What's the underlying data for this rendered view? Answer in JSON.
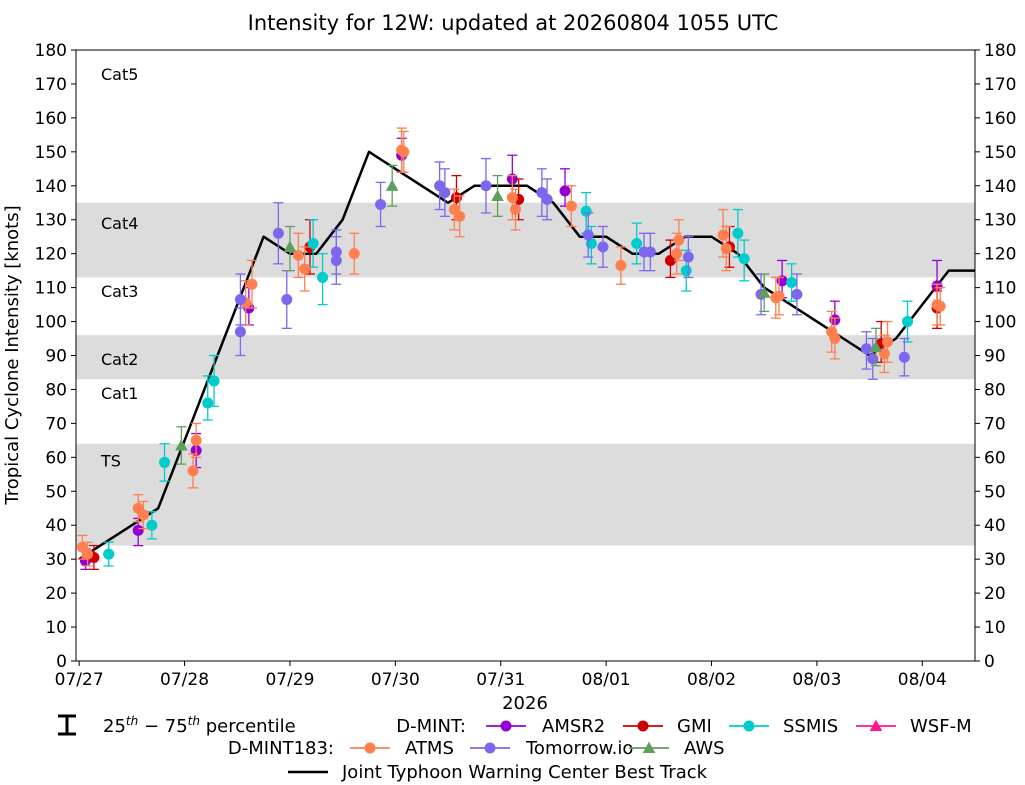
{
  "chart_data": {
    "type": "scatter",
    "title": "Intensity for 12W: updated at 20260804 1055 UTC",
    "ylabel": "Tropical Cyclone Intensity [knots]",
    "xlabel": "2026",
    "ylim": [
      0,
      180
    ],
    "yticks": [
      0,
      10,
      20,
      30,
      40,
      50,
      60,
      70,
      80,
      90,
      100,
      110,
      120,
      130,
      140,
      150,
      160,
      170,
      180
    ],
    "xlim": [
      -0.03,
      8.5
    ],
    "x_units": "days since 07/27 0000 UTC",
    "xticks": [
      {
        "x": 0,
        "label": "07/27"
      },
      {
        "x": 1,
        "label": "07/28"
      },
      {
        "x": 2,
        "label": "07/29"
      },
      {
        "x": 3,
        "label": "07/30"
      },
      {
        "x": 4,
        "label": "07/31"
      },
      {
        "x": 5,
        "label": "08/01"
      },
      {
        "x": 6,
        "label": "08/02"
      },
      {
        "x": 7,
        "label": "08/03"
      },
      {
        "x": 8,
        "label": "08/04"
      }
    ],
    "bands": [
      {
        "label": "TS",
        "from": 34,
        "to": 64,
        "label_y": 59
      },
      {
        "label": "Cat1",
        "from": 64,
        "to": 83,
        "label_y": 79
      },
      {
        "label": "Cat2",
        "from": 83,
        "to": 96,
        "label_y": 89
      },
      {
        "label": "Cat3",
        "from": 96,
        "to": 113,
        "label_y": 109
      },
      {
        "label": "Cat4",
        "from": 113,
        "to": 135,
        "label_y": 129
      },
      {
        "label": "Cat5",
        "from": 135,
        "to": 180,
        "label_y": 173
      }
    ],
    "best_track": {
      "name": "Joint Typhoon Warning Center Best Track",
      "color": "#000000",
      "x": [
        0.0,
        0.25,
        0.5,
        0.75,
        1.0,
        1.25,
        1.5,
        1.75,
        2.0,
        2.25,
        2.5,
        2.75,
        3.0,
        3.25,
        3.5,
        3.75,
        4.0,
        4.25,
        4.5,
        4.75,
        5.0,
        5.25,
        5.5,
        5.75,
        6.0,
        6.25,
        6.5,
        6.75,
        7.0,
        7.25,
        7.5,
        7.75,
        8.0,
        8.25,
        8.5
      ],
      "y": [
        30,
        35,
        40,
        45,
        65,
        85,
        105,
        125,
        120,
        120,
        130,
        150,
        145,
        140,
        135,
        140,
        140,
        140,
        135,
        125,
        125,
        120,
        120,
        125,
        125,
        120,
        110,
        105,
        100,
        95,
        90,
        95,
        105,
        115,
        115
      ]
    },
    "series": [
      {
        "name": "AMSR2",
        "group": "D-MINT",
        "color": "#9400d3",
        "marker": "circle",
        "points": [
          {
            "x": 0.06,
            "y": 29.5,
            "lo": 27,
            "hi": 33
          },
          {
            "x": 0.56,
            "y": 38.5,
            "lo": 34,
            "hi": 42
          },
          {
            "x": 1.11,
            "y": 62,
            "lo": 57,
            "hi": 67
          },
          {
            "x": 1.61,
            "y": 104,
            "lo": 99,
            "hi": 110
          },
          {
            "x": 3.06,
            "y": 149,
            "lo": 144,
            "hi": 154
          },
          {
            "x": 4.11,
            "y": 142,
            "lo": 137,
            "hi": 149
          },
          {
            "x": 4.61,
            "y": 138.5,
            "lo": 134,
            "hi": 145
          },
          {
            "x": 6.67,
            "y": 112,
            "lo": 107,
            "hi": 118
          },
          {
            "x": 7.17,
            "y": 100.5,
            "lo": 95,
            "hi": 106
          },
          {
            "x": 8.14,
            "y": 110.5,
            "lo": 105,
            "hi": 118
          }
        ]
      },
      {
        "name": "GMI",
        "group": "D-MINT",
        "color": "#cc0000",
        "marker": "circle",
        "points": [
          {
            "x": 0.14,
            "y": 30.5,
            "lo": 27,
            "hi": 34
          },
          {
            "x": 2.19,
            "y": 122,
            "lo": 114,
            "hi": 130
          },
          {
            "x": 3.58,
            "y": 136.5,
            "lo": 130,
            "hi": 143
          },
          {
            "x": 4.17,
            "y": 136,
            "lo": 130,
            "hi": 142
          },
          {
            "x": 5.61,
            "y": 118,
            "lo": 113,
            "hi": 124
          },
          {
            "x": 6.17,
            "y": 122,
            "lo": 116,
            "hi": 128
          },
          {
            "x": 7.61,
            "y": 93.5,
            "lo": 88,
            "hi": 100
          },
          {
            "x": 8.14,
            "y": 104,
            "lo": 98,
            "hi": 109
          }
        ]
      },
      {
        "name": "SSMIS",
        "group": "D-MINT",
        "color": "#00cccc",
        "marker": "circle",
        "points": [
          {
            "x": 0.28,
            "y": 31.5,
            "lo": 28,
            "hi": 35
          },
          {
            "x": 0.69,
            "y": 40,
            "lo": 36,
            "hi": 44
          },
          {
            "x": 0.81,
            "y": 58.5,
            "lo": 53,
            "hi": 64
          },
          {
            "x": 1.22,
            "y": 76,
            "lo": 71,
            "hi": 84
          },
          {
            "x": 1.28,
            "y": 82.5,
            "lo": 75,
            "hi": 90
          },
          {
            "x": 2.22,
            "y": 123,
            "lo": 116,
            "hi": 130
          },
          {
            "x": 2.31,
            "y": 113,
            "lo": 105,
            "hi": 120
          },
          {
            "x": 4.81,
            "y": 132.5,
            "lo": 126,
            "hi": 138
          },
          {
            "x": 4.86,
            "y": 123,
            "lo": 117,
            "hi": 128
          },
          {
            "x": 5.29,
            "y": 123,
            "lo": 117,
            "hi": 129
          },
          {
            "x": 5.76,
            "y": 115,
            "lo": 109,
            "hi": 121
          },
          {
            "x": 6.25,
            "y": 126,
            "lo": 119,
            "hi": 133
          },
          {
            "x": 6.31,
            "y": 118.5,
            "lo": 112,
            "hi": 124
          },
          {
            "x": 6.76,
            "y": 111.5,
            "lo": 106,
            "hi": 117
          },
          {
            "x": 7.86,
            "y": 100,
            "lo": 94,
            "hi": 106
          }
        ]
      },
      {
        "name": "WSF-M",
        "group": "D-MINT",
        "color": "#ff1493",
        "marker": "triangle",
        "points": []
      },
      {
        "name": "ATMS",
        "group": "D-MINT183",
        "color": "#ff7f50",
        "marker": "circle",
        "points": [
          {
            "x": 0.03,
            "y": 33.5,
            "lo": 30,
            "hi": 37
          },
          {
            "x": 0.08,
            "y": 31.5,
            "lo": 28,
            "hi": 35
          },
          {
            "x": 0.56,
            "y": 45,
            "lo": 41,
            "hi": 49
          },
          {
            "x": 0.61,
            "y": 43,
            "lo": 39,
            "hi": 47
          },
          {
            "x": 1.08,
            "y": 56,
            "lo": 51,
            "hi": 61
          },
          {
            "x": 1.11,
            "y": 65,
            "lo": 60,
            "hi": 70
          },
          {
            "x": 1.58,
            "y": 105.5,
            "lo": 99,
            "hi": 112
          },
          {
            "x": 1.64,
            "y": 111,
            "lo": 104,
            "hi": 118
          },
          {
            "x": 2.08,
            "y": 119.5,
            "lo": 113,
            "hi": 126
          },
          {
            "x": 2.14,
            "y": 115.5,
            "lo": 109,
            "hi": 122
          },
          {
            "x": 2.61,
            "y": 120,
            "lo": 114,
            "hi": 126
          },
          {
            "x": 3.06,
            "y": 150.5,
            "lo": 144,
            "hi": 157
          },
          {
            "x": 3.08,
            "y": 150,
            "lo": 144,
            "hi": 156
          },
          {
            "x": 3.56,
            "y": 133,
            "lo": 127,
            "hi": 139
          },
          {
            "x": 3.61,
            "y": 131,
            "lo": 125,
            "hi": 137
          },
          {
            "x": 4.11,
            "y": 136.5,
            "lo": 130,
            "hi": 143
          },
          {
            "x": 4.14,
            "y": 133,
            "lo": 127,
            "hi": 139
          },
          {
            "x": 4.67,
            "y": 134,
            "lo": 128,
            "hi": 140
          },
          {
            "x": 5.14,
            "y": 116.5,
            "lo": 111,
            "hi": 122
          },
          {
            "x": 5.67,
            "y": 120,
            "lo": 114,
            "hi": 126
          },
          {
            "x": 5.69,
            "y": 124,
            "lo": 118,
            "hi": 130
          },
          {
            "x": 6.11,
            "y": 125.5,
            "lo": 119,
            "hi": 133
          },
          {
            "x": 6.14,
            "y": 121.5,
            "lo": 115,
            "hi": 128
          },
          {
            "x": 6.61,
            "y": 107,
            "lo": 101,
            "hi": 113
          },
          {
            "x": 6.64,
            "y": 107.5,
            "lo": 102,
            "hi": 113
          },
          {
            "x": 7.14,
            "y": 97,
            "lo": 91,
            "hi": 103
          },
          {
            "x": 7.17,
            "y": 95,
            "lo": 89,
            "hi": 101
          },
          {
            "x": 7.64,
            "y": 90.5,
            "lo": 85,
            "hi": 96
          },
          {
            "x": 7.67,
            "y": 94,
            "lo": 88,
            "hi": 100
          },
          {
            "x": 8.14,
            "y": 105,
            "lo": 99,
            "hi": 111
          },
          {
            "x": 8.17,
            "y": 104.5,
            "lo": 99,
            "hi": 110
          }
        ]
      },
      {
        "name": "Tomorrow.io",
        "group": "D-MINT183",
        "color": "#7b68ee",
        "marker": "circle",
        "points": [
          {
            "x": 1.53,
            "y": 106.5,
            "lo": 99,
            "hi": 114
          },
          {
            "x": 1.53,
            "y": 97,
            "lo": 90,
            "hi": 104
          },
          {
            "x": 1.89,
            "y": 126,
            "lo": 117,
            "hi": 135
          },
          {
            "x": 1.97,
            "y": 106.5,
            "lo": 98,
            "hi": 115
          },
          {
            "x": 2.44,
            "y": 120.5,
            "lo": 114,
            "hi": 127
          },
          {
            "x": 2.44,
            "y": 118,
            "lo": 111,
            "hi": 125
          },
          {
            "x": 2.86,
            "y": 134.5,
            "lo": 128,
            "hi": 141
          },
          {
            "x": 3.42,
            "y": 140,
            "lo": 133,
            "hi": 147
          },
          {
            "x": 3.47,
            "y": 138,
            "lo": 131,
            "hi": 145
          },
          {
            "x": 3.86,
            "y": 140,
            "lo": 132,
            "hi": 148
          },
          {
            "x": 4.39,
            "y": 138,
            "lo": 131,
            "hi": 145
          },
          {
            "x": 4.44,
            "y": 136,
            "lo": 130,
            "hi": 142
          },
          {
            "x": 4.83,
            "y": 125.5,
            "lo": 119,
            "hi": 132
          },
          {
            "x": 4.97,
            "y": 122,
            "lo": 116,
            "hi": 128
          },
          {
            "x": 5.36,
            "y": 120.5,
            "lo": 115,
            "hi": 126
          },
          {
            "x": 5.42,
            "y": 120.5,
            "lo": 115,
            "hi": 126
          },
          {
            "x": 5.78,
            "y": 119,
            "lo": 113,
            "hi": 125
          },
          {
            "x": 6.47,
            "y": 108,
            "lo": 102,
            "hi": 114
          },
          {
            "x": 6.81,
            "y": 108,
            "lo": 102,
            "hi": 114
          },
          {
            "x": 7.47,
            "y": 92,
            "lo": 86,
            "hi": 97
          },
          {
            "x": 7.53,
            "y": 89,
            "lo": 83,
            "hi": 95
          },
          {
            "x": 7.83,
            "y": 89.5,
            "lo": 84,
            "hi": 95
          }
        ]
      },
      {
        "name": "AWS",
        "group": "D-MINT183",
        "color": "#5f9e5f",
        "marker": "triangle",
        "points": [
          {
            "x": 0.97,
            "y": 63.5,
            "lo": 58,
            "hi": 69
          },
          {
            "x": 2.0,
            "y": 122,
            "lo": 115,
            "hi": 128
          },
          {
            "x": 2.97,
            "y": 140,
            "lo": 134,
            "hi": 146
          },
          {
            "x": 3.97,
            "y": 137,
            "lo": 131,
            "hi": 143
          },
          {
            "x": 6.5,
            "y": 108.5,
            "lo": 103,
            "hi": 114
          },
          {
            "x": 7.56,
            "y": 92.5,
            "lo": 87,
            "hi": 98
          }
        ]
      }
    ],
    "legend": {
      "percentile_text": "25th − 75th percentile",
      "group1_label": "D-MINT:",
      "group2_label": "D-MINT183:",
      "placement": "bottom"
    }
  }
}
